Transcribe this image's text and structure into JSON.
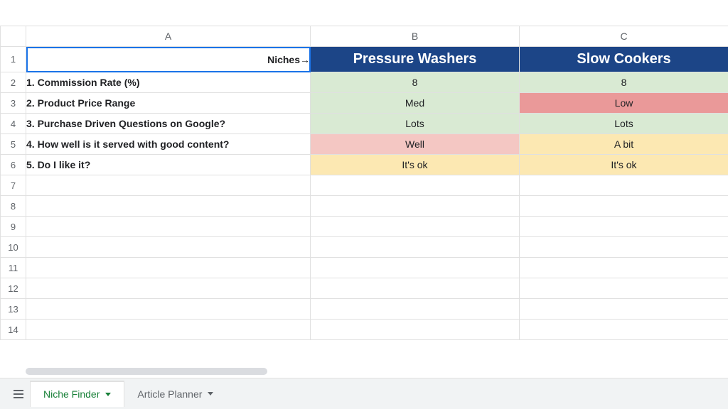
{
  "columns": {
    "A": "A",
    "B": "B",
    "C": "C"
  },
  "row_numbers": [
    "1",
    "2",
    "3",
    "4",
    "5",
    "6",
    "7",
    "8",
    "9",
    "10",
    "11",
    "12",
    "13",
    "14"
  ],
  "col_widths": {
    "rownum": 36,
    "A": 400,
    "B": 294,
    "C": 294
  },
  "header": {
    "A": "Niches→",
    "B": "Pressure Washers",
    "C": "Slow Cookers"
  },
  "criteria": [
    {
      "label": "1. Commission Rate (%)",
      "B": {
        "text": "8",
        "bg": "green"
      },
      "C": {
        "text": "8",
        "bg": "green"
      }
    },
    {
      "label": "2. Product Price Range",
      "B": {
        "text": "Med",
        "bg": "green"
      },
      "C": {
        "text": "Low",
        "bg": "pinkish"
      }
    },
    {
      "label": "3. Purchase Driven Questions on Google?",
      "B": {
        "text": "Lots",
        "bg": "green"
      },
      "C": {
        "text": "Lots",
        "bg": "green"
      }
    },
    {
      "label": "4. How well is it served with good content?",
      "B": {
        "text": "Well",
        "bg": "pink"
      },
      "C": {
        "text": "A bit",
        "bg": "yellow"
      }
    },
    {
      "label": "5. Do I like it?",
      "B": {
        "text": "It's ok",
        "bg": "yellow"
      },
      "C": {
        "text": "It's ok",
        "bg": "yellow"
      }
    }
  ],
  "colors": {
    "niche_header_bg": "#1c4587",
    "niche_header_fg": "#ffffff",
    "green": "#d9ead3",
    "yellow": "#fce8b2",
    "pink": "#f4c7c3",
    "pinkish": "#ea9999",
    "gridline": "#e0e0e0",
    "rowhead_fg": "#5f6368",
    "active_tab_fg": "#188038",
    "tabbar_bg": "#f1f3f4"
  },
  "tabs": {
    "active": "Niche Finder",
    "others": [
      "Article Planner"
    ]
  },
  "cell_fontsize": 14,
  "header_fontsize": 20,
  "active_cell": "A1"
}
